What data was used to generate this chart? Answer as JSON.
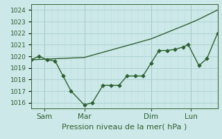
{
  "xlabel": "Pression niveau de la mer( hPa )",
  "bg_color": "#cce8e8",
  "plot_bg_color": "#cce8e8",
  "grid_major_color": "#aacfcf",
  "grid_minor_color": "#bbdede",
  "line_color": "#2d6030",
  "ylim": [
    1015.5,
    1024.5
  ],
  "yticks": [
    1016,
    1017,
    1018,
    1019,
    1020,
    1021,
    1022,
    1023,
    1024
  ],
  "xlim_days": [
    0,
    7.0
  ],
  "xtick_day_positions": [
    0.5,
    2.0,
    4.5,
    6.0
  ],
  "xtick_day_labels": [
    "Sam",
    "Mar",
    "Dim",
    "Lun"
  ],
  "vline_positions": [
    0.5,
    2.0,
    4.5,
    6.0
  ],
  "line1_x": [
    0.0,
    0.3,
    0.6,
    0.9,
    1.2,
    1.5,
    2.0,
    2.3,
    2.7,
    3.0,
    3.3,
    3.6,
    3.9,
    4.2,
    4.5,
    4.8,
    5.1,
    5.4,
    5.7,
    5.9,
    6.3,
    6.6,
    7.0
  ],
  "line1_y": [
    1019.7,
    1020.0,
    1019.7,
    1019.6,
    1018.3,
    1017.0,
    1015.8,
    1016.0,
    1017.5,
    1017.5,
    1017.5,
    1018.3,
    1018.3,
    1018.3,
    1019.4,
    1020.5,
    1020.5,
    1020.6,
    1020.8,
    1021.0,
    1019.2,
    1019.8,
    1022.0
  ],
  "line2_x": [
    0.0,
    2.0,
    4.5,
    5.9,
    6.3,
    7.0
  ],
  "line2_y": [
    1019.7,
    1019.9,
    1021.5,
    1022.8,
    1023.2,
    1024.0
  ],
  "marker_size": 2.8,
  "line_width": 1.0,
  "font_size_xlabel": 8,
  "font_size_ytick": 6.5,
  "font_size_xtick": 7.5
}
